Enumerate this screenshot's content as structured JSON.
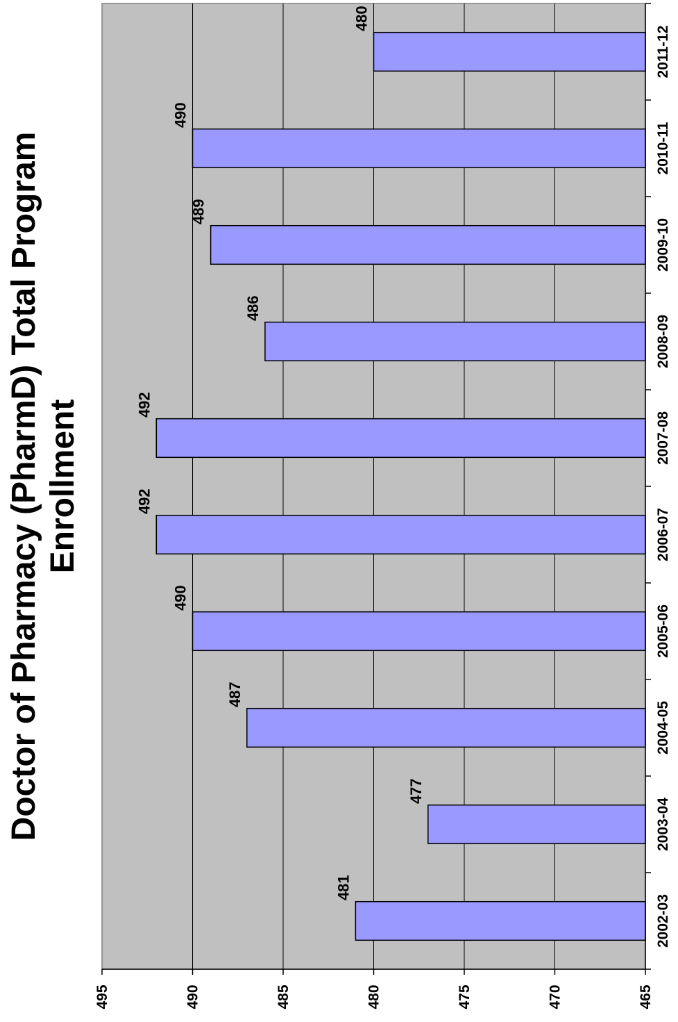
{
  "chart_data": {
    "type": "bar",
    "title_lines": [
      "Doctor of Pharmacy (PharmD) Total Program",
      "Enrollment"
    ],
    "categories": [
      "2002-03",
      "2003-04",
      "2004-05",
      "2005-06",
      "2006-07",
      "2007-08",
      "2008-09",
      "2009-10",
      "2010-11",
      "2011-12"
    ],
    "values": [
      481,
      477,
      487,
      490,
      492,
      492,
      486,
      489,
      490,
      480
    ],
    "value_labels": [
      "481",
      "477",
      "487",
      "490",
      "492",
      "492",
      "486",
      "489",
      "490",
      "480"
    ],
    "value_axis": {
      "min": 465,
      "max": 495,
      "step": 5,
      "tick_labels": [
        "465",
        "470",
        "475",
        "480",
        "485",
        "490",
        "495"
      ]
    },
    "orientation": "rotated-90-counterclockwise",
    "grid": true,
    "legend": "none",
    "colors": {
      "bar_fill": "#9999ff",
      "bar_stroke": "#000000",
      "plot_background": "#c0c0c0",
      "gridline": "#000000"
    }
  }
}
